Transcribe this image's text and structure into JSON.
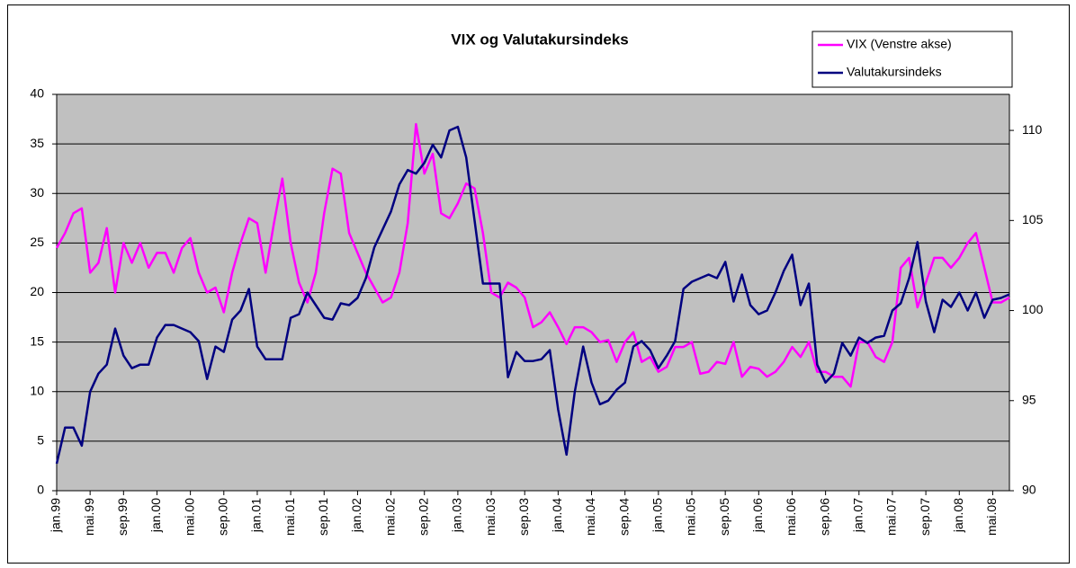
{
  "chart_data": {
    "type": "line",
    "title": "VIX og Valutakursindeks",
    "categories": [
      "jan.99",
      null,
      null,
      null,
      "mai.99",
      null,
      null,
      null,
      "sep.99",
      null,
      null,
      null,
      "jan.00",
      null,
      null,
      null,
      "mai.00",
      null,
      null,
      null,
      "sep.00",
      null,
      null,
      null,
      "jan.01",
      null,
      null,
      null,
      "mai.01",
      null,
      null,
      null,
      "sep.01",
      null,
      null,
      null,
      "jan.02",
      null,
      null,
      null,
      "mai.02",
      null,
      null,
      null,
      "sep.02",
      null,
      null,
      null,
      "jan.03",
      null,
      null,
      null,
      "mai.03",
      null,
      null,
      null,
      "sep.03",
      null,
      null,
      null,
      "jan.04",
      null,
      null,
      null,
      "mai.04",
      null,
      null,
      null,
      "sep.04",
      null,
      null,
      null,
      "jan.05",
      null,
      null,
      null,
      "mai.05",
      null,
      null,
      null,
      "sep.05",
      null,
      null,
      null,
      "jan.06",
      null,
      null,
      null,
      "mai.06",
      null,
      null,
      null,
      "sep.06",
      null,
      null,
      null,
      "jan.07",
      null,
      null,
      null,
      "mai.07",
      null,
      null,
      null,
      "sep.07",
      null,
      null,
      null,
      "jan.08",
      null,
      null,
      null,
      "mai.08",
      null,
      null
    ],
    "series": [
      {
        "name": "VIX (Venstre akse)",
        "color": "#ff00ff",
        "values": [
          24.5,
          26,
          28,
          28.5,
          22,
          23,
          26.5,
          20,
          25,
          23,
          25,
          22.5,
          24,
          24,
          22,
          24.5,
          25.5,
          22,
          20,
          20.5,
          18,
          22,
          25,
          27.5,
          27,
          22,
          27,
          31.5,
          25,
          21,
          19,
          22,
          28,
          32.5,
          32,
          26,
          24,
          22,
          20.5,
          19,
          19.5,
          22,
          27,
          37,
          32,
          34,
          28,
          27.5,
          29,
          31,
          30.5,
          26,
          20,
          19.5,
          21,
          20.5,
          19.5,
          16.5,
          17,
          18,
          16.5,
          14.8,
          16.5,
          16.5,
          16,
          15,
          15.2,
          13,
          15,
          16,
          13,
          13.5,
          12,
          12.5,
          14.5,
          14.5,
          15,
          11.8,
          12,
          13,
          12.8,
          15,
          11.5,
          12.5,
          12.3,
          11.5,
          12,
          13,
          14.5,
          13.5,
          15,
          12,
          12,
          11.5,
          11.5,
          10.5,
          15,
          15,
          13.5,
          13,
          15,
          22.5,
          23.5,
          18.5,
          21,
          23.5,
          23.5,
          22.5,
          23.5,
          25,
          26,
          22.5,
          19,
          19,
          19.5
        ]
      },
      {
        "name": "Valutakursindeks",
        "color": "#000080",
        "axis": "y2",
        "values": [
          91.5,
          93.5,
          93.5,
          92.5,
          95.5,
          96.5,
          97,
          99,
          97.5,
          96.8,
          97,
          97,
          98.5,
          99.2,
          99.2,
          99,
          98.8,
          98.3,
          96.2,
          98,
          97.7,
          99.5,
          100,
          101.2,
          98,
          97.3,
          97.3,
          97.3,
          99.6,
          99.8,
          101,
          100.3,
          99.6,
          99.5,
          100.4,
          100.3,
          100.7,
          101.8,
          103.5,
          104.5,
          105.5,
          107,
          107.8,
          107.6,
          108.2,
          109.2,
          108.5,
          110,
          110.2,
          108.5,
          105,
          101.5,
          101.5,
          101.5,
          96.3,
          97.7,
          97.2,
          97.2,
          97.3,
          97.8,
          94.5,
          92,
          95.5,
          98,
          96,
          94.8,
          95,
          95.6,
          96,
          98,
          98.3,
          97.8,
          96.8,
          97.5,
          98.3,
          101.2,
          101.6,
          101.8,
          102,
          101.8,
          102.7,
          100.5,
          102,
          100.3,
          99.8,
          100,
          101,
          102.2,
          103.1,
          100.3,
          101.5,
          97,
          96,
          96.5,
          98.2,
          97.5,
          98.5,
          98.2,
          98.5,
          98.6,
          100,
          100.4,
          101.8,
          103.8,
          100.5,
          98.8,
          100.6,
          100.2,
          101,
          100,
          101,
          99.6,
          100.6,
          100.7,
          100.9
        ]
      }
    ],
    "ylim": [
      0,
      40
    ],
    "yticks": [
      0,
      5,
      10,
      15,
      20,
      25,
      30,
      35,
      40
    ],
    "y2lim": [
      90,
      112
    ],
    "y2ticks": [
      90,
      95,
      100,
      105,
      110
    ],
    "grid": true,
    "legend": "top-right"
  }
}
